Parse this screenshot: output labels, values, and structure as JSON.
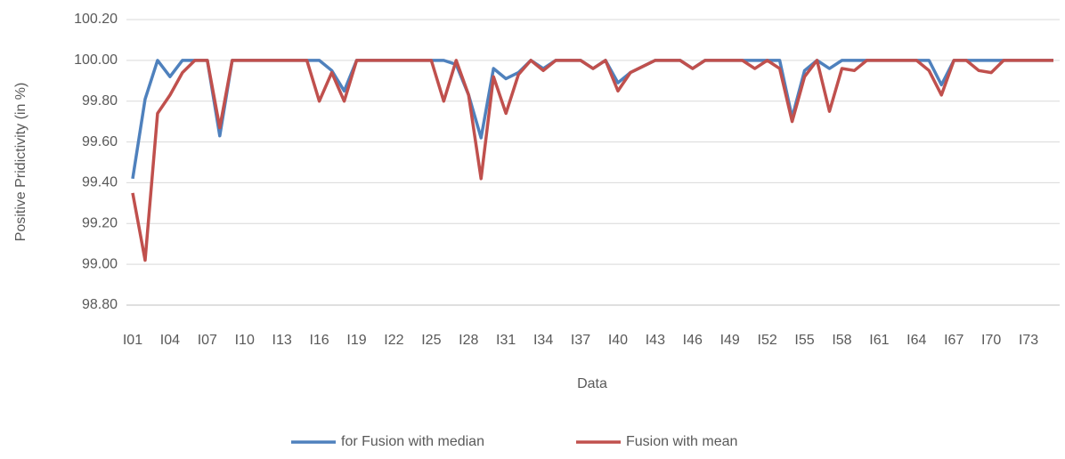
{
  "chart_data": {
    "type": "line",
    "y_label": "Positive Pridictivity (in %)",
    "x_label": "Data",
    "categories": [
      "I01",
      null,
      null,
      "I04",
      null,
      null,
      "I07",
      null,
      null,
      "I10",
      null,
      null,
      "I13",
      null,
      null,
      "I16",
      null,
      null,
      "I19",
      null,
      null,
      "I22",
      null,
      null,
      "I25",
      null,
      null,
      "I28",
      null,
      null,
      "I31",
      null,
      null,
      "I34",
      null,
      null,
      "I37",
      null,
      null,
      "I40",
      null,
      null,
      "I43",
      null,
      null,
      "I46",
      null,
      null,
      "I49",
      null,
      null,
      "I52",
      null,
      null,
      "I55",
      null,
      null,
      "I58",
      null,
      null,
      "I61",
      null,
      null,
      "I64",
      null,
      null,
      "I67",
      null,
      null,
      "I70",
      null,
      null,
      "I73",
      null,
      null
    ],
    "series": [
      {
        "name": "for Fusion with median",
        "color": "#4f81bd",
        "values": [
          99.42,
          99.81,
          100,
          99.92,
          100,
          100,
          100,
          99.63,
          100,
          100,
          100,
          100,
          100,
          100,
          100,
          100,
          99.95,
          99.85,
          100,
          100,
          100,
          100,
          100,
          100,
          100,
          100,
          99.98,
          99.83,
          99.62,
          99.96,
          99.91,
          99.94,
          100,
          99.96,
          100,
          100,
          100,
          99.96,
          100,
          99.89,
          99.94,
          99.97,
          100,
          100,
          100,
          99.96,
          100,
          100,
          100,
          100,
          100,
          100,
          100,
          99.72,
          99.95,
          100,
          99.96,
          100,
          100,
          100,
          100,
          100,
          100,
          100,
          100,
          99.88,
          100,
          100,
          100,
          100,
          100,
          100,
          100,
          100,
          100
        ]
      },
      {
        "name": "Fusion with mean",
        "color": "#c0504d",
        "values": [
          99.35,
          99.02,
          99.74,
          99.83,
          99.94,
          100,
          100,
          99.67,
          100,
          100,
          100,
          100,
          100,
          100,
          100,
          99.8,
          99.94,
          99.8,
          100,
          100,
          100,
          100,
          100,
          100,
          100,
          99.8,
          100,
          99.83,
          99.42,
          99.92,
          99.74,
          99.93,
          100,
          99.95,
          100,
          100,
          100,
          99.96,
          100,
          99.85,
          99.94,
          99.97,
          100,
          100,
          100,
          99.96,
          100,
          100,
          100,
          100,
          99.96,
          100,
          99.96,
          99.7,
          99.92,
          100,
          99.75,
          99.96,
          99.95,
          100,
          100,
          100,
          100,
          100,
          99.95,
          99.83,
          100,
          100,
          99.95,
          99.94,
          100,
          100,
          100,
          100,
          100
        ]
      }
    ],
    "ylim": [
      98.8,
      100.2
    ],
    "yticks": [
      {
        "value": 98.8,
        "label": "98.80"
      },
      {
        "value": 99.0,
        "label": "99.00"
      },
      {
        "value": 99.2,
        "label": "99.20"
      },
      {
        "value": 99.4,
        "label": "99.40"
      },
      {
        "value": 99.6,
        "label": "99.60"
      },
      {
        "value": 99.8,
        "label": "99.80"
      },
      {
        "value": 100.0,
        "label": "100.00"
      },
      {
        "value": 100.2,
        "label": "100.20"
      }
    ],
    "grid": true,
    "legend": "bottom"
  }
}
